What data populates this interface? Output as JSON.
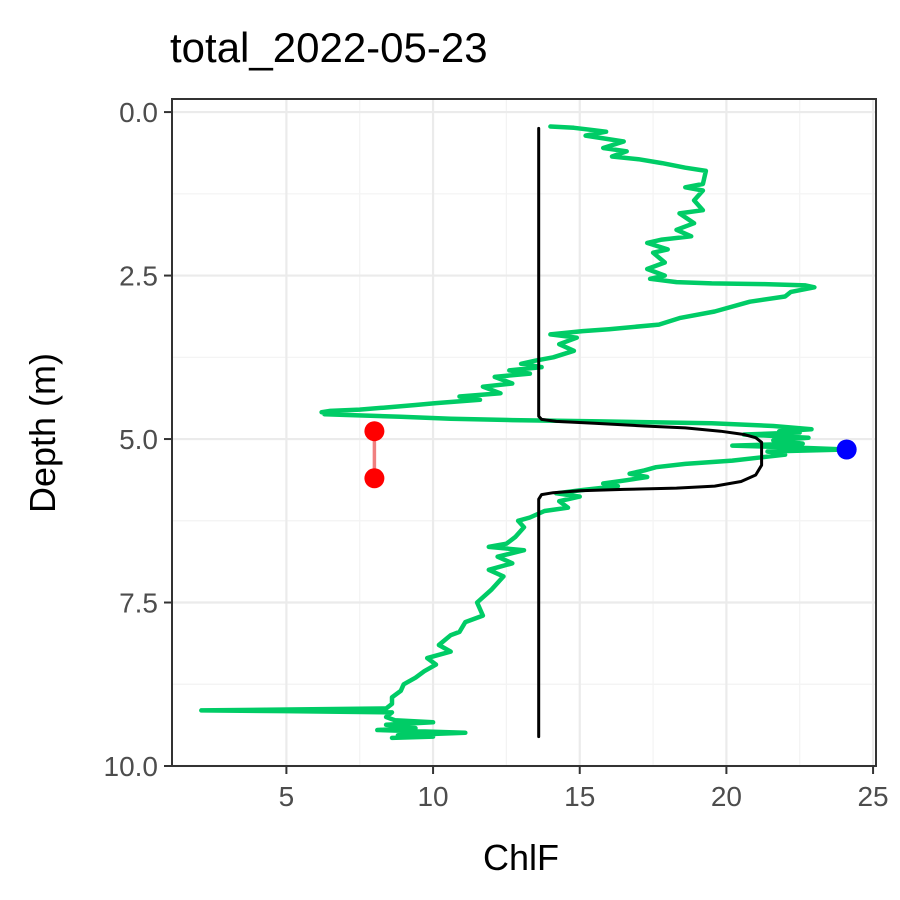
{
  "chart_data": {
    "type": "line",
    "title": "total_2022-05-23",
    "xlabel": "ChlF",
    "ylabel": "Depth (m)",
    "xlim": [
      1.1,
      25.1
    ],
    "ylim": [
      10.0,
      -0.2
    ],
    "y_reversed": true,
    "x_ticks": [
      5,
      10,
      15,
      20,
      25
    ],
    "x_tick_labels": [
      "5",
      "10",
      "15",
      "20",
      "25"
    ],
    "y_ticks": [
      0,
      2.5,
      5,
      7.5,
      10
    ],
    "y_tick_labels": [
      "0.0",
      "2.5",
      "5.0",
      "7.5",
      "10.0"
    ],
    "grid": true,
    "legend": "none",
    "series": [
      {
        "kind": "profile",
        "color": "#00CC66",
        "points": [
          [
            14.0,
            0.22
          ],
          [
            14.8,
            0.24
          ],
          [
            15.9,
            0.3
          ],
          [
            15.2,
            0.36
          ],
          [
            16.5,
            0.45
          ],
          [
            15.8,
            0.55
          ],
          [
            16.6,
            0.6
          ],
          [
            16.1,
            0.68
          ],
          [
            17.0,
            0.72
          ],
          [
            17.8,
            0.78
          ],
          [
            18.6,
            0.85
          ],
          [
            19.3,
            0.9
          ],
          [
            19.2,
            1.1
          ],
          [
            18.6,
            1.15
          ],
          [
            19.2,
            1.2
          ],
          [
            18.9,
            1.35
          ],
          [
            19.2,
            1.5
          ],
          [
            18.4,
            1.55
          ],
          [
            18.9,
            1.7
          ],
          [
            18.3,
            1.8
          ],
          [
            18.8,
            1.9
          ],
          [
            17.8,
            1.95
          ],
          [
            17.3,
            2.0
          ],
          [
            18.0,
            2.1
          ],
          [
            17.5,
            2.15
          ],
          [
            17.9,
            2.3
          ],
          [
            17.3,
            2.4
          ],
          [
            17.9,
            2.5
          ],
          [
            17.4,
            2.55
          ],
          [
            18.3,
            2.6
          ],
          [
            19.5,
            2.62
          ],
          [
            21.3,
            2.63
          ],
          [
            22.7,
            2.65
          ],
          [
            23.0,
            2.68
          ],
          [
            22.2,
            2.75
          ],
          [
            22.0,
            2.82
          ],
          [
            20.8,
            2.9
          ],
          [
            19.6,
            3.05
          ],
          [
            18.4,
            3.15
          ],
          [
            17.7,
            3.25
          ],
          [
            16.0,
            3.32
          ],
          [
            15.1,
            3.35
          ],
          [
            14.0,
            3.4
          ],
          [
            14.9,
            3.45
          ],
          [
            14.3,
            3.55
          ],
          [
            14.8,
            3.65
          ],
          [
            14.1,
            3.75
          ],
          [
            13.5,
            3.8
          ],
          [
            13.0,
            3.85
          ],
          [
            13.7,
            3.9
          ],
          [
            12.6,
            3.95
          ],
          [
            13.3,
            4.0
          ],
          [
            12.1,
            4.05
          ],
          [
            12.7,
            4.15
          ],
          [
            11.7,
            4.2
          ],
          [
            12.3,
            4.3
          ],
          [
            10.9,
            4.35
          ],
          [
            11.6,
            4.4
          ],
          [
            10.1,
            4.45
          ],
          [
            9.4,
            4.48
          ],
          [
            8.3,
            4.52
          ],
          [
            7.5,
            4.55
          ],
          [
            6.5,
            4.57
          ],
          [
            6.2,
            4.59
          ],
          [
            6.8,
            4.6
          ],
          [
            6.3,
            4.62
          ],
          [
            7.6,
            4.64
          ],
          [
            8.9,
            4.66
          ],
          [
            10.6,
            4.69
          ],
          [
            12.7,
            4.71
          ],
          [
            15.7,
            4.73
          ],
          [
            19.5,
            4.76
          ],
          [
            21.6,
            4.8
          ],
          [
            22.9,
            4.85
          ],
          [
            21.8,
            4.88
          ],
          [
            22.5,
            4.9
          ],
          [
            20.6,
            4.93
          ],
          [
            22.8,
            4.98
          ],
          [
            21.6,
            5.02
          ],
          [
            22.6,
            5.07
          ],
          [
            20.2,
            5.1
          ],
          [
            22.3,
            5.13
          ],
          [
            24.1,
            5.16
          ],
          [
            21.4,
            5.19
          ],
          [
            22.0,
            5.24
          ],
          [
            21.2,
            5.28
          ],
          [
            20.2,
            5.33
          ],
          [
            18.6,
            5.38
          ],
          [
            17.6,
            5.43
          ],
          [
            17.2,
            5.48
          ],
          [
            16.7,
            5.53
          ],
          [
            17.3,
            5.58
          ],
          [
            16.6,
            5.63
          ],
          [
            15.8,
            5.68
          ],
          [
            16.3,
            5.72
          ],
          [
            15.1,
            5.78
          ],
          [
            14.2,
            5.83
          ],
          [
            15.0,
            5.88
          ],
          [
            14.3,
            5.95
          ],
          [
            14.6,
            6.05
          ],
          [
            13.8,
            6.1
          ],
          [
            13.3,
            6.2
          ],
          [
            12.9,
            6.25
          ],
          [
            13.1,
            6.35
          ],
          [
            12.8,
            6.5
          ],
          [
            12.5,
            6.6
          ],
          [
            11.9,
            6.65
          ],
          [
            13.1,
            6.7
          ],
          [
            12.2,
            6.8
          ],
          [
            12.7,
            6.9
          ],
          [
            11.9,
            7.0
          ],
          [
            12.4,
            7.1
          ],
          [
            12.0,
            7.3
          ],
          [
            11.5,
            7.5
          ],
          [
            11.7,
            7.7
          ],
          [
            11.1,
            7.8
          ],
          [
            10.9,
            7.95
          ],
          [
            10.6,
            8.0
          ],
          [
            10.2,
            8.15
          ],
          [
            10.6,
            8.25
          ],
          [
            9.8,
            8.35
          ],
          [
            10.1,
            8.45
          ],
          [
            9.7,
            8.55
          ],
          [
            9.4,
            8.65
          ],
          [
            9.0,
            8.75
          ],
          [
            8.9,
            8.85
          ],
          [
            8.6,
            8.95
          ],
          [
            8.6,
            9.05
          ],
          [
            8.4,
            9.12
          ],
          [
            2.1,
            9.15
          ],
          [
            5.0,
            9.16
          ],
          [
            8.6,
            9.18
          ],
          [
            8.4,
            9.25
          ],
          [
            8.7,
            9.3
          ],
          [
            10.0,
            9.33
          ],
          [
            8.4,
            9.37
          ],
          [
            9.4,
            9.42
          ],
          [
            8.1,
            9.45
          ],
          [
            11.1,
            9.49
          ],
          [
            8.8,
            9.53
          ],
          [
            10.0,
            9.55
          ],
          [
            8.6,
            9.57
          ]
        ]
      },
      {
        "kind": "fit",
        "color": "#000000",
        "points": [
          [
            13.6,
            0.25
          ],
          [
            13.6,
            4.65
          ],
          [
            13.7,
            4.7
          ],
          [
            14.2,
            4.73
          ],
          [
            15.5,
            4.76
          ],
          [
            17.2,
            4.8
          ],
          [
            18.6,
            4.83
          ],
          [
            19.8,
            4.88
          ],
          [
            20.6,
            4.93
          ],
          [
            21.0,
            4.98
          ],
          [
            21.2,
            5.05
          ],
          [
            21.2,
            5.4
          ],
          [
            21.0,
            5.55
          ],
          [
            20.5,
            5.65
          ],
          [
            19.6,
            5.72
          ],
          [
            18.3,
            5.75
          ],
          [
            16.5,
            5.77
          ],
          [
            15.0,
            5.79
          ],
          [
            14.1,
            5.82
          ],
          [
            13.7,
            5.85
          ],
          [
            13.6,
            5.92
          ],
          [
            13.6,
            9.55
          ]
        ]
      }
    ],
    "markers": [
      {
        "x": 24.1,
        "y": 5.16,
        "color": "#0000FF"
      },
      {
        "x": 8.0,
        "y": 4.88,
        "color": "#FF0000"
      },
      {
        "x": 8.0,
        "y": 5.6,
        "color": "#FF0000"
      }
    ],
    "segments": [
      {
        "x1": 8.0,
        "y1": 4.88,
        "x2": 8.0,
        "y2": 5.6,
        "color": "#F08080"
      }
    ]
  }
}
